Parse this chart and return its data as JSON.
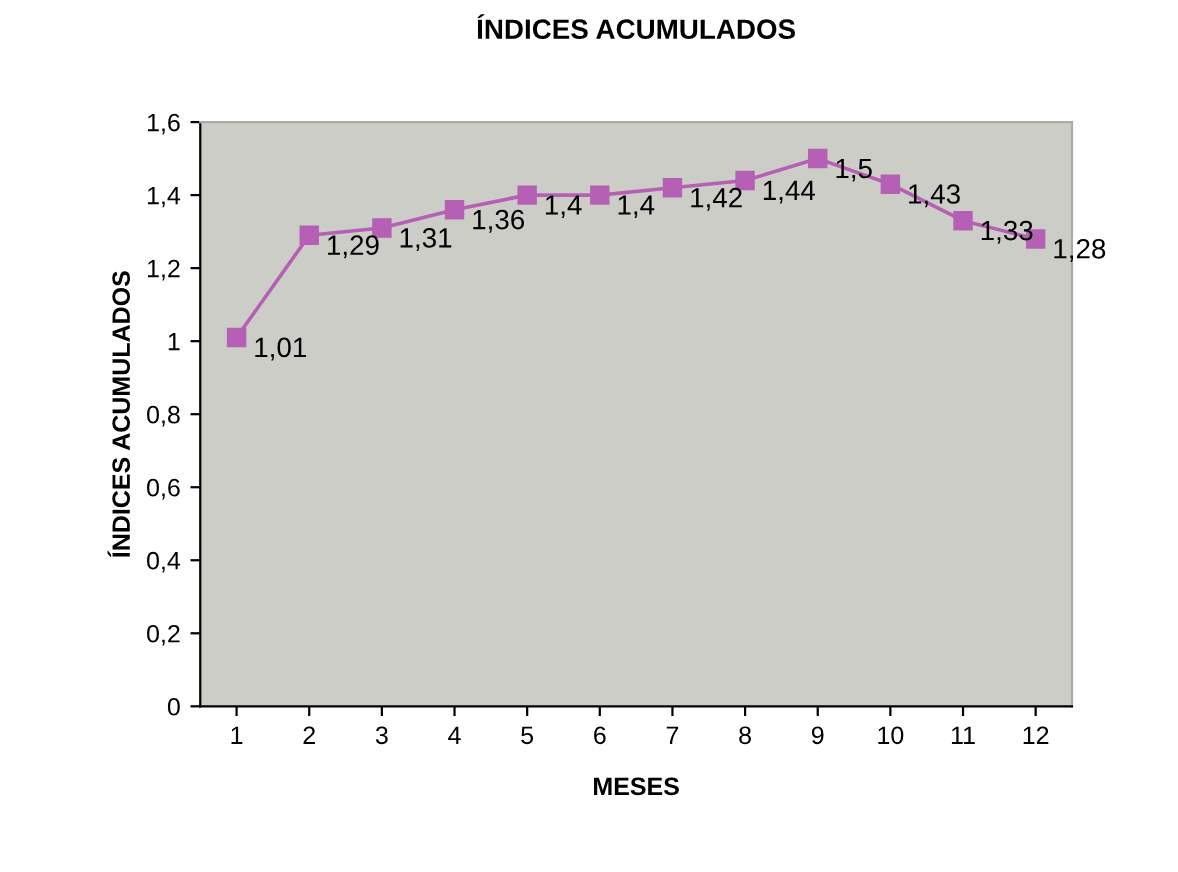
{
  "chart_data": {
    "type": "line",
    "title": "ÍNDICES ACUMULADOS",
    "xlabel": "MESES",
    "ylabel": "ÍNDICES ACUMULADOS",
    "categories": [
      "1",
      "2",
      "3",
      "4",
      "5",
      "6",
      "7",
      "8",
      "9",
      "10",
      "11",
      "12"
    ],
    "series": [
      {
        "color": "#b560b5",
        "values": [
          1.01,
          1.29,
          1.31,
          1.36,
          1.4,
          1.4,
          1.42,
          1.44,
          1.5,
          1.43,
          1.33,
          1.28
        ],
        "value_labels": [
          "1,01",
          "1,29",
          "1,31",
          "1,36",
          "1,4",
          "1,4",
          "1,42",
          "1,44",
          "1,5",
          "1,43",
          "1,33",
          "1,28"
        ]
      }
    ],
    "ylim": [
      0,
      1.6
    ],
    "yticks": [
      0,
      {
        "value": 0.2,
        "label": "0,2"
      },
      {
        "value": 0.4,
        "label": "0,4"
      },
      {
        "value": 0.6,
        "label": "0,6"
      },
      {
        "value": 0.8,
        "label": "0,8"
      },
      1,
      {
        "value": 1.2,
        "label": "1,2"
      },
      {
        "value": 1.4,
        "label": "1,4"
      },
      {
        "value": 1.6,
        "label": "1,6"
      }
    ],
    "marker": "square",
    "line_style": "solid",
    "grid": false,
    "legend": false
  }
}
